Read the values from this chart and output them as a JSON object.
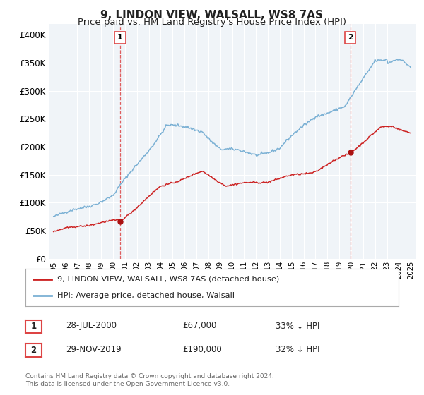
{
  "title": "9, LINDON VIEW, WALSALL, WS8 7AS",
  "subtitle": "Price paid vs. HM Land Registry's House Price Index (HPI)",
  "hpi_label": "HPI: Average price, detached house, Walsall",
  "property_label": "9, LINDON VIEW, WALSALL, WS8 7AS (detached house)",
  "footnote": "Contains HM Land Registry data © Crown copyright and database right 2024.\nThis data is licensed under the Open Government Licence v3.0.",
  "sale1_date": "28-JUL-2000",
  "sale1_price": "£67,000",
  "sale1_hpi": "33% ↓ HPI",
  "sale2_date": "29-NOV-2019",
  "sale2_price": "£190,000",
  "sale2_hpi": "32% ↓ HPI",
  "ylim": [
    0,
    420000
  ],
  "yticks": [
    0,
    50000,
    100000,
    150000,
    200000,
    250000,
    300000,
    350000,
    400000
  ],
  "hpi_color": "#7ab0d4",
  "property_color": "#cc2222",
  "vline_color": "#dd4444",
  "bg_color": "#ffffff",
  "plot_bg_color": "#f0f4f8",
  "grid_color": "#ffffff",
  "title_fontsize": 11,
  "subtitle_fontsize": 9.5
}
